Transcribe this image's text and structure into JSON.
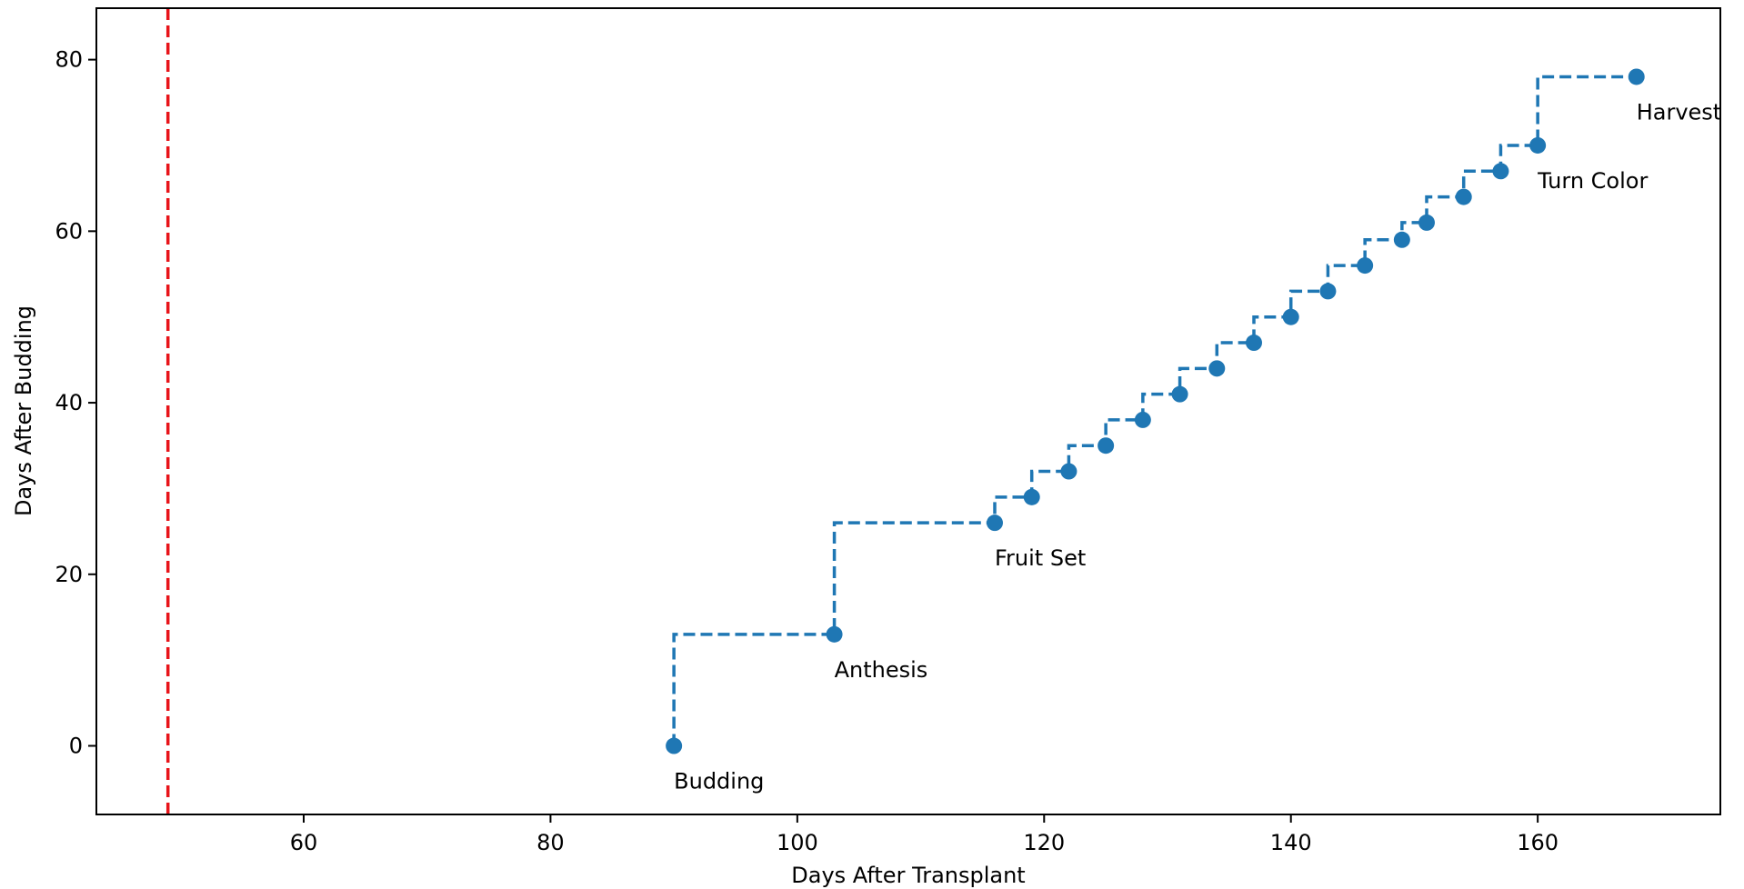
{
  "chart_data": {
    "type": "line",
    "title": "",
    "xlabel": "Days After Transplant",
    "ylabel": "Days After Budding",
    "xlim": [
      43.2,
      174.8
    ],
    "ylim": [
      -8,
      86
    ],
    "xticks": [
      60,
      80,
      100,
      120,
      140,
      160
    ],
    "yticks": [
      0,
      20,
      40,
      60,
      80
    ],
    "grid": false,
    "legend": "none",
    "step": "pre",
    "line_style": "dashed",
    "series_color": "#1f77b4",
    "series": [
      {
        "x": [
          90,
          103,
          116,
          119,
          122,
          125,
          128,
          131,
          134,
          137,
          140,
          143,
          146,
          149,
          151,
          154,
          157,
          160,
          168
        ],
        "y": [
          0,
          13,
          26,
          29,
          32,
          35,
          38,
          41,
          44,
          47,
          50,
          53,
          56,
          59,
          61,
          64,
          67,
          70,
          78
        ]
      }
    ],
    "annotations": [
      {
        "x": 90,
        "y": 0,
        "text": "Budding"
      },
      {
        "x": 103,
        "y": 13,
        "text": "Anthesis"
      },
      {
        "x": 116,
        "y": 26,
        "text": "Fruit Set"
      },
      {
        "x": 160,
        "y": 70,
        "text": "Turn Color"
      },
      {
        "x": 168,
        "y": 78,
        "text": "Harvest"
      }
    ],
    "vline": {
      "x": 49,
      "color": "#e8141a",
      "style": "dashed"
    }
  }
}
